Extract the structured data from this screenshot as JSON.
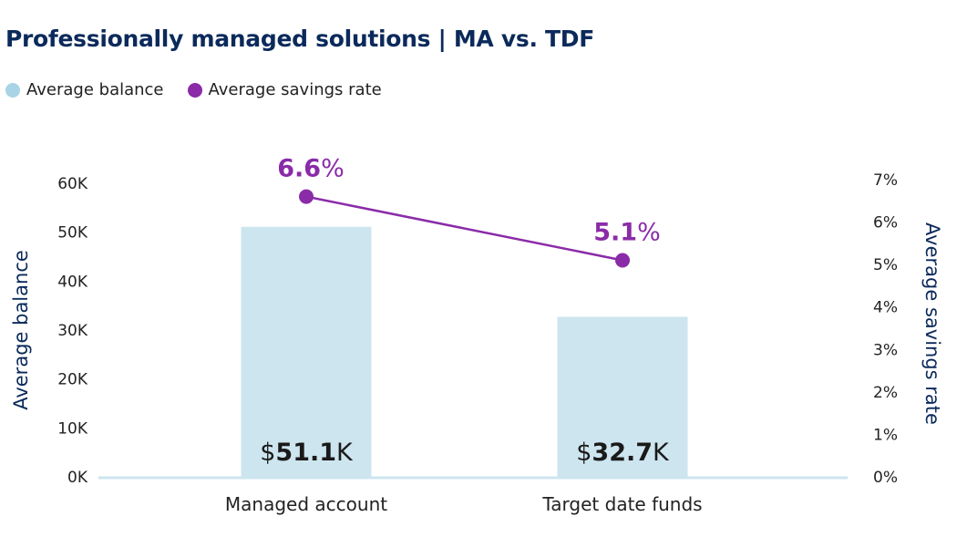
{
  "chart_data": {
    "type": "bar+line",
    "title": "Professionally managed solutions | MA vs. TDF",
    "categories": [
      "Managed account",
      "Target date funds"
    ],
    "series": [
      {
        "name": "Average balance",
        "type": "bar",
        "axis": "left",
        "values": [
          51.1,
          32.7
        ],
        "unit": "K",
        "labels": [
          "51.1",
          "32.7"
        ],
        "label_prefix": "$",
        "label_suffix": "K",
        "color": "#cde5ef"
      },
      {
        "name": "Average savings rate",
        "type": "line",
        "axis": "right",
        "values": [
          6.6,
          5.1
        ],
        "labels": [
          "6.6",
          "5.1"
        ],
        "label_suffix": "%",
        "color": "#8a2ba8"
      }
    ],
    "ylabel": "Average balance",
    "y2label": "Average savings rate",
    "ylim": [
      0,
      60
    ],
    "y2lim": [
      0,
      7
    ],
    "yticks": [
      "0K",
      "10K",
      "20K",
      "30K",
      "40K",
      "50K",
      "60K"
    ],
    "y2ticks": [
      "0%",
      "1%",
      "2%",
      "3%",
      "4%",
      "5%",
      "6%",
      "7%"
    ],
    "legend": "top-left",
    "grid": false,
    "legend_swatch_balance": "#a8d4e6"
  }
}
